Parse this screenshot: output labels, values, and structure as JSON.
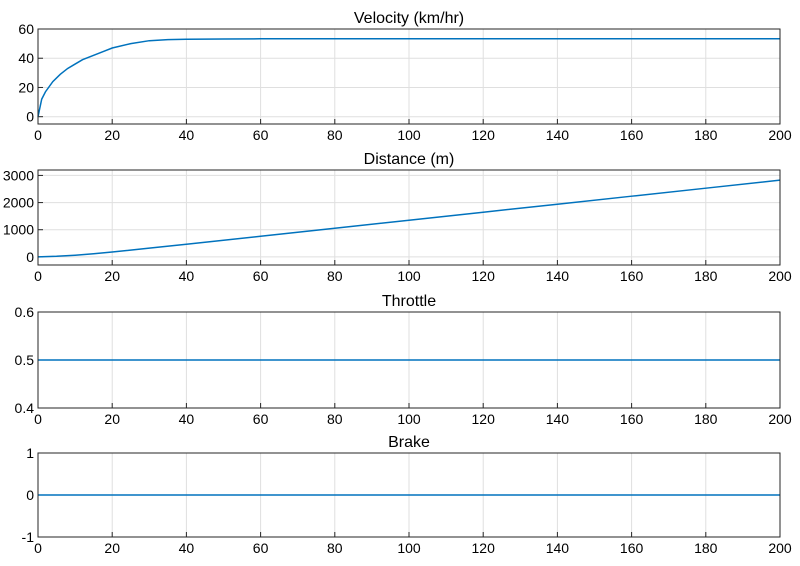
{
  "chart_data": [
    {
      "type": "line",
      "title": "Velocity (km/hr)",
      "x": [
        0,
        1,
        2,
        4,
        6,
        8,
        10,
        12,
        15,
        18,
        20,
        25,
        30,
        35,
        40,
        50,
        60,
        80,
        100,
        120,
        140,
        160,
        180,
        200
      ],
      "values": [
        0,
        12,
        17,
        24,
        29,
        33,
        36,
        39,
        42,
        45,
        47,
        50,
        52,
        52.7,
        53,
        53.2,
        53.3,
        53.3,
        53.3,
        53.3,
        53.3,
        53.3,
        53.3,
        53.3
      ],
      "color": "#0072bd",
      "xlim": [
        0,
        200
      ],
      "ylim": [
        -5,
        60
      ],
      "xticks": [
        0,
        20,
        40,
        60,
        80,
        100,
        120,
        140,
        160,
        180,
        200
      ],
      "yticks": [
        0,
        20,
        40,
        60
      ],
      "grid": true
    },
    {
      "type": "line",
      "title": "Distance (m)",
      "x": [
        0,
        5,
        10,
        15,
        20,
        30,
        40,
        60,
        80,
        100,
        120,
        140,
        160,
        180,
        200
      ],
      "values": [
        0,
        20,
        60,
        115,
        180,
        320,
        465,
        760,
        1055,
        1350,
        1645,
        1940,
        2235,
        2530,
        2825
      ],
      "color": "#0072bd",
      "xlim": [
        0,
        200
      ],
      "ylim": [
        -300,
        3200
      ],
      "xticks": [
        0,
        20,
        40,
        60,
        80,
        100,
        120,
        140,
        160,
        180,
        200
      ],
      "yticks": [
        0,
        1000,
        2000,
        3000
      ],
      "grid": true
    },
    {
      "type": "line",
      "title": "Throttle",
      "x": [
        0,
        200
      ],
      "values": [
        0.5,
        0.5
      ],
      "color": "#0072bd",
      "xlim": [
        0,
        200
      ],
      "ylim": [
        0.4,
        0.6
      ],
      "xticks": [
        0,
        20,
        40,
        60,
        80,
        100,
        120,
        140,
        160,
        180,
        200
      ],
      "yticks": [
        0.4,
        0.5,
        0.6
      ],
      "grid": true
    },
    {
      "type": "line",
      "title": "Brake",
      "x": [
        0,
        200
      ],
      "values": [
        0,
        0
      ],
      "color": "#0072bd",
      "xlim": [
        0,
        200
      ],
      "ylim": [
        -1,
        1
      ],
      "xticks": [
        0,
        20,
        40,
        60,
        80,
        100,
        120,
        140,
        160,
        180,
        200
      ],
      "yticks": [
        -1,
        0,
        1
      ],
      "grid": true
    }
  ]
}
